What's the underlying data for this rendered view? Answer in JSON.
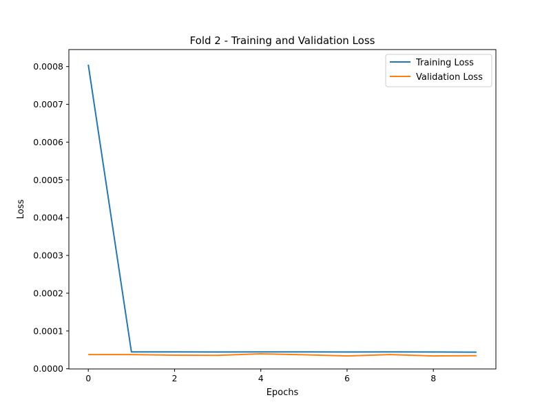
{
  "chart_data": {
    "type": "line",
    "title": "Fold 2 - Training and Validation Loss",
    "xlabel": "Epochs",
    "ylabel": "Loss",
    "xlim": [
      -0.45,
      9.45
    ],
    "ylim": [
      -5e-07,
      0.000845
    ],
    "xticks": [
      0,
      2,
      4,
      6,
      8
    ],
    "xtick_labels": [
      "0",
      "2",
      "4",
      "6",
      "8"
    ],
    "yticks": [
      0,
      0.0001,
      0.0002,
      0.0003,
      0.0004,
      0.0005,
      0.0006,
      0.0007,
      0.0008
    ],
    "ytick_labels": [
      "0.0000",
      "0.0001",
      "0.0002",
      "0.0003",
      "0.0004",
      "0.0005",
      "0.0006",
      "0.0007",
      "0.0008"
    ],
    "grid": false,
    "legend_position": "top-right",
    "x": [
      0,
      1,
      2,
      3,
      4,
      5,
      6,
      7,
      8,
      9
    ],
    "series": [
      {
        "name": "Training Loss",
        "color": "#1f77b4",
        "values": [
          0.000805,
          4.45e-05,
          4.45e-05,
          4.43e-05,
          4.46e-05,
          4.45e-05,
          4.43e-05,
          4.46e-05,
          4.43e-05,
          4.4e-05
        ]
      },
      {
        "name": "Validation Loss",
        "color": "#ff7f0e",
        "values": [
          3.75e-05,
          3.75e-05,
          3.6e-05,
          3.55e-05,
          3.95e-05,
          3.7e-05,
          3.4e-05,
          3.75e-05,
          3.4e-05,
          3.45e-05
        ]
      }
    ]
  }
}
